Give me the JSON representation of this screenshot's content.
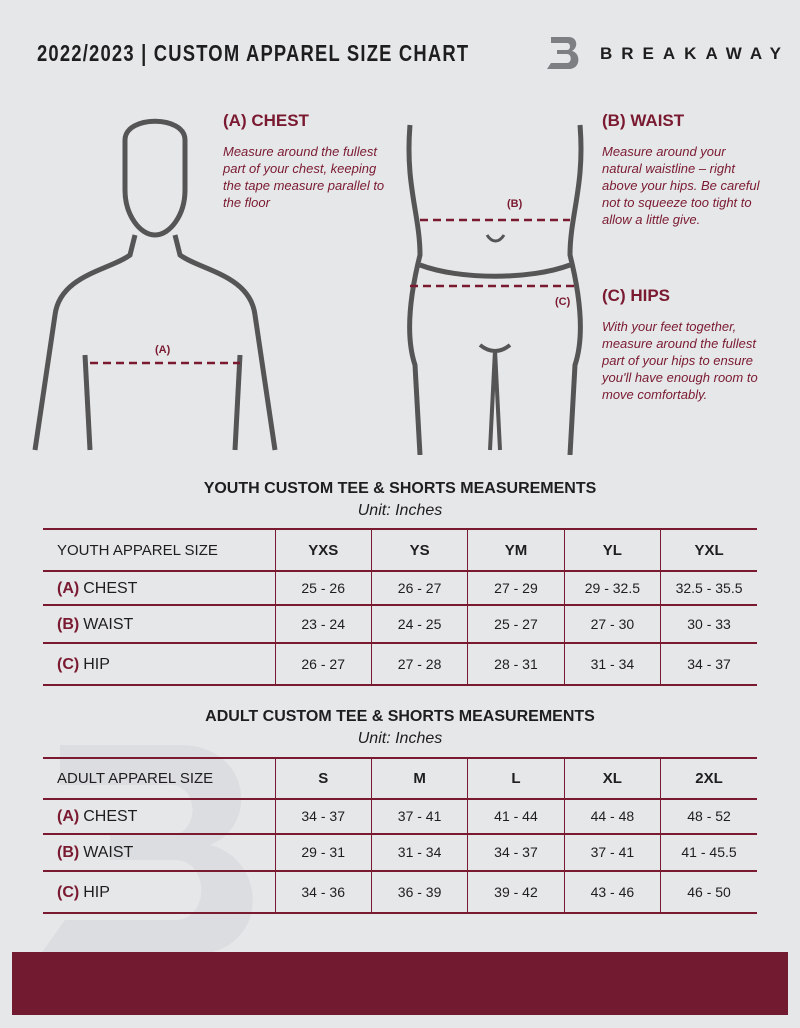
{
  "header": {
    "title": "2022/2023  |  CUSTOM APPAREL SIZE CHART",
    "brand": "BREAKAWAY"
  },
  "guide": {
    "chest": {
      "title": "(A) CHEST",
      "marker": "(A)",
      "text": "Measure around the fullest part of your chest, keeping the tape measure parallel to the floor"
    },
    "waist": {
      "title": "(B) WAIST",
      "marker": "(B)",
      "text": "Measure around your natural waistline – right above your hips. Be careful not to squeeze too tight to allow a little give."
    },
    "hips": {
      "title": "(C) HIPS",
      "marker": "(C)",
      "text": "With your feet together, measure around the fullest part of your hips to ensure you'll have enough room to move comfortably."
    }
  },
  "youth": {
    "title": "YOUTH CUSTOM TEE & SHORTS MEASUREMENTS",
    "unit": "Unit: Inches",
    "header": "YOUTH APPAREL SIZE",
    "sizes": [
      "YXS",
      "YS",
      "YM",
      "YL",
      "YXL"
    ],
    "rows": [
      {
        "key": "(A)",
        "label": "CHEST",
        "values": [
          "25 - 26",
          "26 - 27",
          "27 - 29",
          "29 - 32.5",
          "32.5 - 35.5"
        ]
      },
      {
        "key": "(B)",
        "label": "WAIST",
        "values": [
          "23 - 24",
          "24 - 25",
          "25 - 27",
          "27 - 30",
          "30 - 33"
        ]
      },
      {
        "key": "(C)",
        "label": "HIP",
        "values": [
          "26 - 27",
          "27 - 28",
          "28 - 31",
          "31 - 34",
          "34 - 37"
        ]
      }
    ]
  },
  "adult": {
    "title": "ADULT CUSTOM TEE & SHORTS MEASUREMENTS",
    "unit": "Unit: Inches",
    "header": "ADULT APPAREL SIZE",
    "sizes": [
      "S",
      "M",
      "L",
      "XL",
      "2XL"
    ],
    "rows": [
      {
        "key": "(A)",
        "label": "CHEST",
        "values": [
          "34 - 37",
          "37 - 41",
          "41 - 44",
          "44 - 48",
          "48 - 52"
        ]
      },
      {
        "key": "(B)",
        "label": "WAIST",
        "values": [
          "29 - 31",
          "31 - 34",
          "34 - 37",
          "37 - 41",
          "41 - 45.5"
        ]
      },
      {
        "key": "(C)",
        "label": "HIP",
        "values": [
          "34 - 36",
          "36 - 39",
          "39 - 42",
          "43 - 46",
          "46 - 50"
        ]
      }
    ]
  },
  "colors": {
    "accent": "#7a1a31",
    "background": "#e6e7e9"
  }
}
